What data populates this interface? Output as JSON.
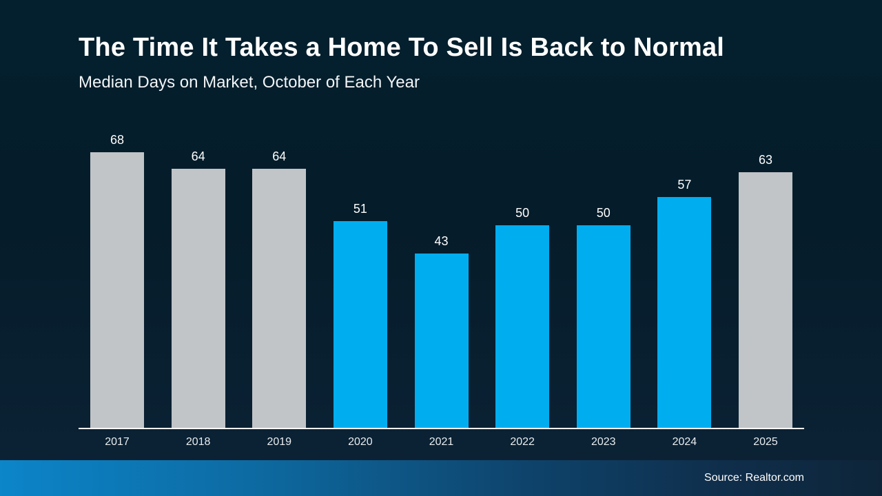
{
  "chart_data": {
    "type": "bar",
    "title": "The Time It Takes a Home To Sell Is Back to Normal",
    "subtitle": "Median Days on Market, October of Each Year",
    "categories": [
      "2017",
      "2018",
      "2019",
      "2020",
      "2021",
      "2022",
      "2023",
      "2024",
      "2025"
    ],
    "values": [
      68,
      64,
      64,
      51,
      43,
      50,
      50,
      57,
      63
    ],
    "bar_colors": [
      "gray",
      "gray",
      "gray",
      "blue",
      "blue",
      "blue",
      "blue",
      "blue",
      "gray"
    ],
    "colors": {
      "gray": "#c1c5c8",
      "blue": "#00aeef"
    },
    "ylim": [
      0,
      72
    ],
    "grid": false,
    "legend": "none",
    "source": "Source: Realtor.com"
  }
}
